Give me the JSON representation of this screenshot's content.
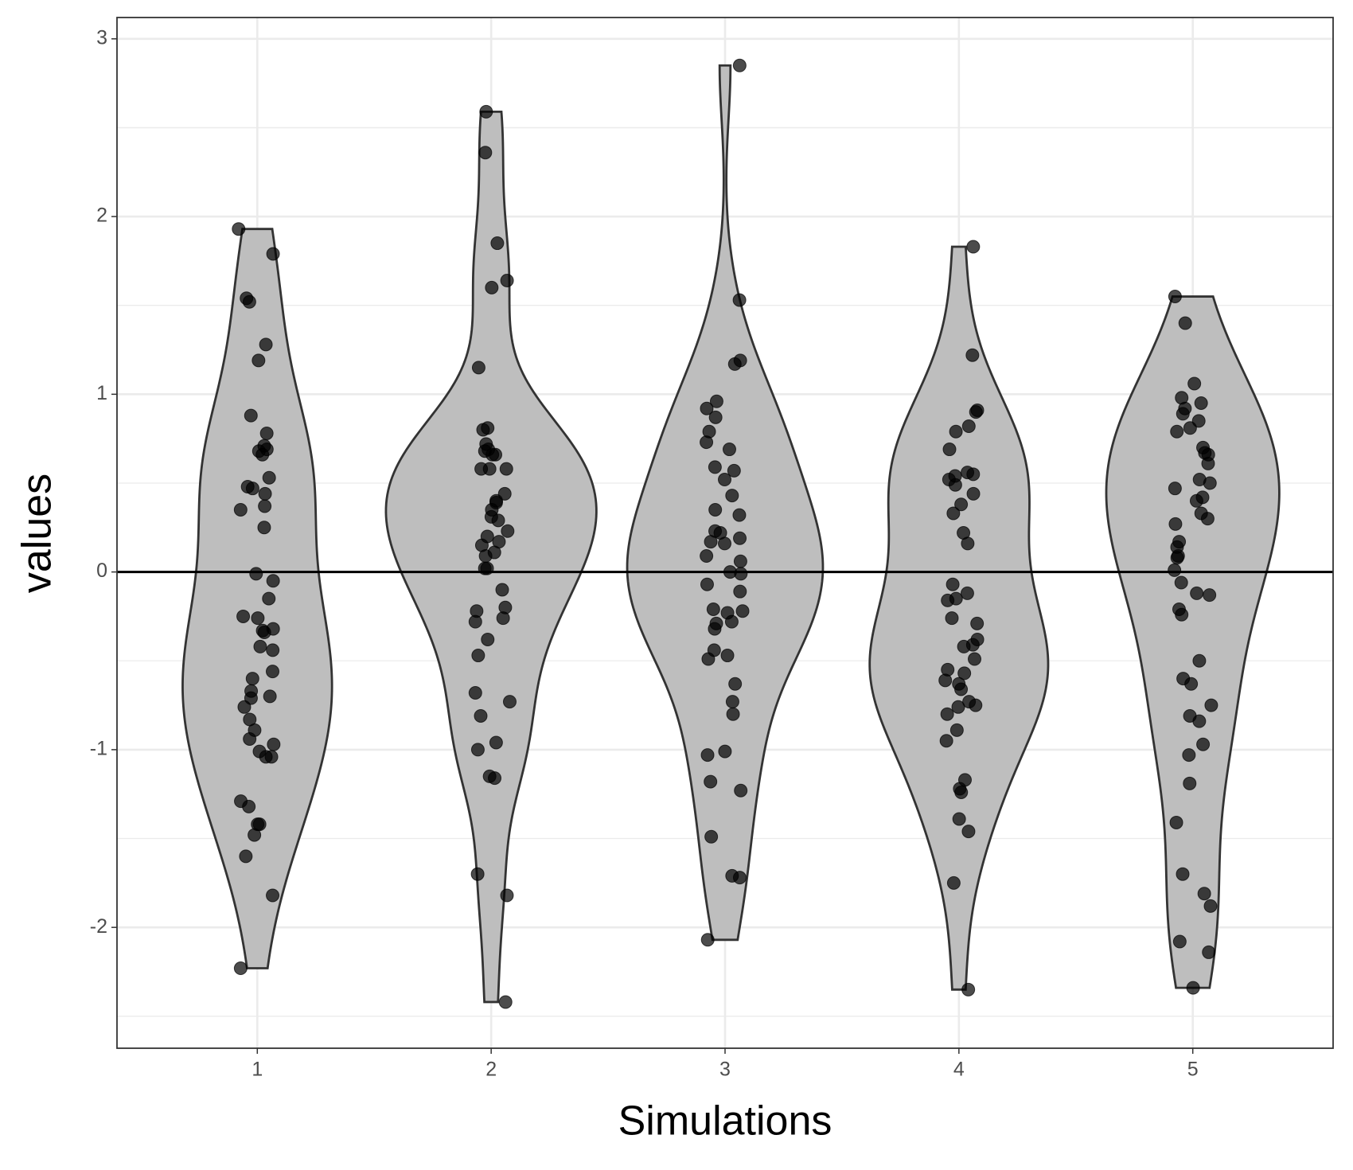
{
  "chart_data": {
    "type": "violin",
    "xlabel": "Simulations",
    "ylabel": "values",
    "categories": [
      "1",
      "2",
      "3",
      "4",
      "5"
    ],
    "series": [
      {
        "name": "1",
        "values": [
          1.93,
          1.79,
          1.52,
          1.54,
          1.28,
          1.19,
          0.88,
          0.78,
          0.69,
          0.68,
          0.71,
          0.66,
          0.53,
          0.48,
          0.47,
          0.44,
          0.37,
          0.35,
          0.25,
          -0.01,
          -0.05,
          -0.15,
          -0.25,
          -0.26,
          -0.32,
          -0.34,
          -0.33,
          -0.42,
          -0.44,
          -0.56,
          -0.6,
          -0.67,
          -0.7,
          -0.71,
          -0.76,
          -0.83,
          -0.89,
          -0.94,
          -0.97,
          -1.01,
          -1.04,
          -1.04,
          -1.29,
          -1.32,
          -1.42,
          -1.42,
          -1.48,
          -1.6,
          -1.82,
          -2.23
        ]
      },
      {
        "name": "2",
        "values": [
          2.59,
          2.36,
          1.85,
          1.64,
          1.6,
          1.15,
          0.81,
          0.8,
          0.72,
          0.69,
          0.68,
          0.66,
          0.66,
          0.58,
          0.58,
          0.58,
          0.44,
          0.4,
          0.39,
          0.35,
          0.31,
          0.29,
          0.23,
          0.2,
          0.17,
          0.15,
          0.11,
          0.09,
          0.02,
          0.02,
          -0.1,
          -0.2,
          -0.22,
          -0.26,
          -0.28,
          -0.38,
          -0.47,
          -0.68,
          -0.73,
          -0.81,
          -0.96,
          -1,
          -1.15,
          -1.16,
          -1.7,
          -1.82,
          -2.42
        ]
      },
      {
        "name": "3",
        "values": [
          2.85,
          1.53,
          1.19,
          1.17,
          0.96,
          0.92,
          0.87,
          0.79,
          0.73,
          0.69,
          0.59,
          0.57,
          0.52,
          0.43,
          0.35,
          0.32,
          0.23,
          0.22,
          0.19,
          0.17,
          0.16,
          0.09,
          0.06,
          0,
          -0.01,
          -0.07,
          -0.11,
          -0.21,
          -0.22,
          -0.23,
          -0.28,
          -0.29,
          -0.32,
          -0.44,
          -0.47,
          -0.49,
          -0.63,
          -0.73,
          -0.8,
          -1.01,
          -1.03,
          -1.18,
          -1.23,
          -1.49,
          -1.71,
          -1.72,
          -2.07
        ]
      },
      {
        "name": "4",
        "values": [
          1.83,
          1.22,
          0.91,
          0.9,
          0.82,
          0.79,
          0.69,
          0.56,
          0.55,
          0.54,
          0.52,
          0.49,
          0.44,
          0.38,
          0.33,
          0.22,
          0.16,
          -0.07,
          -0.12,
          -0.15,
          -0.16,
          -0.26,
          -0.29,
          -0.38,
          -0.42,
          -0.41,
          -0.49,
          -0.55,
          -0.57,
          -0.61,
          -0.63,
          -0.66,
          -0.73,
          -0.75,
          -0.76,
          -0.8,
          -0.89,
          -0.95,
          -1.17,
          -1.22,
          -1.24,
          -1.39,
          -1.46,
          -1.75,
          -2.35
        ]
      },
      {
        "name": "5",
        "values": [
          1.55,
          1.4,
          1.06,
          0.98,
          0.95,
          0.92,
          0.89,
          0.85,
          0.81,
          0.79,
          0.7,
          0.67,
          0.66,
          0.61,
          0.52,
          0.5,
          0.47,
          0.42,
          0.4,
          0.33,
          0.3,
          0.27,
          0.17,
          0.14,
          0.09,
          0.08,
          0.01,
          -0.12,
          -0.13,
          -0.06,
          -0.21,
          -0.24,
          -0.5,
          -0.6,
          -0.63,
          -0.75,
          -0.81,
          -0.84,
          -0.97,
          -1.03,
          -1.19,
          -1.41,
          -1.7,
          -1.81,
          -1.88,
          -2.08,
          -2.14,
          -2.34
        ]
      }
    ],
    "violin_color": "#bebebe",
    "point_color": "#000000",
    "hline": 0,
    "ylim": [
      -2.68,
      3.12
    ],
    "yticks": [
      -2,
      -1,
      0,
      1,
      2,
      3
    ],
    "grid": true
  }
}
